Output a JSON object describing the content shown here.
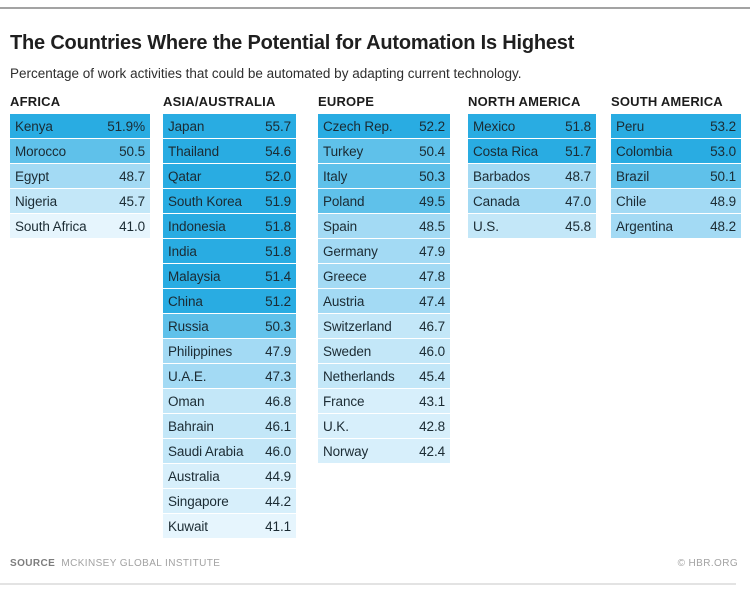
{
  "header": {
    "title": "The Countries Where the Potential for Automation Is Highest",
    "subtitle": "Percentage of work activities that could be automated by adapting current technology."
  },
  "footer": {
    "source_label": "SOURCE",
    "source_value": "MCKINSEY GLOBAL INSTITUTE",
    "copyright": "© HBR.ORG"
  },
  "chart_data": {
    "type": "heatmap",
    "title": "The Countries Where the Potential for Automation Is Highest",
    "subtitle": "Percentage of work activities that could be automated by adapting current technology.",
    "value_unit": "percent of work activities automatable",
    "value_range": [
      41.0,
      55.7
    ],
    "color_scale": {
      "bins": [
        {
          "min": 51.0,
          "color": "#29ACE2"
        },
        {
          "min": 49.5,
          "color": "#5FC1EA"
        },
        {
          "min": 47.0,
          "color": "#A3DAF4"
        },
        {
          "min": 45.4,
          "color": "#C3E7F8"
        },
        {
          "min": 42.4,
          "color": "#D7EFFB"
        },
        {
          "min": 0,
          "color": "#E6F5FD"
        }
      ]
    },
    "groups": [
      {
        "region": "AFRICA",
        "rows": [
          {
            "country": "Kenya",
            "value": 51.9,
            "display": "51.9%"
          },
          {
            "country": "Morocco",
            "value": 50.5,
            "display": "50.5"
          },
          {
            "country": "Egypt",
            "value": 48.7,
            "display": "48.7"
          },
          {
            "country": "Nigeria",
            "value": 45.7,
            "display": "45.7"
          },
          {
            "country": "South Africa",
            "value": 41.0,
            "display": "41.0"
          }
        ]
      },
      {
        "region": "ASIA/AUSTRALIA",
        "rows": [
          {
            "country": "Japan",
            "value": 55.7,
            "display": "55.7"
          },
          {
            "country": "Thailand",
            "value": 54.6,
            "display": "54.6"
          },
          {
            "country": "Qatar",
            "value": 52.0,
            "display": "52.0"
          },
          {
            "country": "South Korea",
            "value": 51.9,
            "display": "51.9"
          },
          {
            "country": "Indonesia",
            "value": 51.8,
            "display": "51.8"
          },
          {
            "country": "India",
            "value": 51.8,
            "display": "51.8"
          },
          {
            "country": "Malaysia",
            "value": 51.4,
            "display": "51.4"
          },
          {
            "country": "China",
            "value": 51.2,
            "display": "51.2"
          },
          {
            "country": "Russia",
            "value": 50.3,
            "display": "50.3"
          },
          {
            "country": "Philippines",
            "value": 47.9,
            "display": "47.9"
          },
          {
            "country": "U.A.E.",
            "value": 47.3,
            "display": "47.3"
          },
          {
            "country": "Oman",
            "value": 46.8,
            "display": "46.8"
          },
          {
            "country": "Bahrain",
            "value": 46.1,
            "display": "46.1"
          },
          {
            "country": "Saudi Arabia",
            "value": 46.0,
            "display": "46.0"
          },
          {
            "country": "Australia",
            "value": 44.9,
            "display": "44.9"
          },
          {
            "country": "Singapore",
            "value": 44.2,
            "display": "44.2"
          },
          {
            "country": "Kuwait",
            "value": 41.1,
            "display": "41.1"
          }
        ]
      },
      {
        "region": "EUROPE",
        "rows": [
          {
            "country": "Czech Rep.",
            "value": 52.2,
            "display": "52.2"
          },
          {
            "country": "Turkey",
            "value": 50.4,
            "display": "50.4"
          },
          {
            "country": "Italy",
            "value": 50.3,
            "display": "50.3"
          },
          {
            "country": "Poland",
            "value": 49.5,
            "display": "49.5"
          },
          {
            "country": "Spain",
            "value": 48.5,
            "display": "48.5"
          },
          {
            "country": "Germany",
            "value": 47.9,
            "display": "47.9"
          },
          {
            "country": "Greece",
            "value": 47.8,
            "display": "47.8"
          },
          {
            "country": "Austria",
            "value": 47.4,
            "display": "47.4"
          },
          {
            "country": "Switzerland",
            "value": 46.7,
            "display": "46.7"
          },
          {
            "country": "Sweden",
            "value": 46.0,
            "display": "46.0"
          },
          {
            "country": "Netherlands",
            "value": 45.4,
            "display": "45.4"
          },
          {
            "country": "France",
            "value": 43.1,
            "display": "43.1"
          },
          {
            "country": "U.K.",
            "value": 42.8,
            "display": "42.8"
          },
          {
            "country": "Norway",
            "value": 42.4,
            "display": "42.4"
          }
        ]
      },
      {
        "region": "NORTH AMERICA",
        "rows": [
          {
            "country": "Mexico",
            "value": 51.8,
            "display": "51.8"
          },
          {
            "country": "Costa Rica",
            "value": 51.7,
            "display": "51.7"
          },
          {
            "country": "Barbados",
            "value": 48.7,
            "display": "48.7"
          },
          {
            "country": "Canada",
            "value": 47.0,
            "display": "47.0"
          },
          {
            "country": "U.S.",
            "value": 45.8,
            "display": "45.8"
          }
        ]
      },
      {
        "region": "SOUTH AMERICA",
        "rows": [
          {
            "country": "Peru",
            "value": 53.2,
            "display": "53.2"
          },
          {
            "country": "Colombia",
            "value": 53.0,
            "display": "53.0"
          },
          {
            "country": "Brazil",
            "value": 50.1,
            "display": "50.1"
          },
          {
            "country": "Chile",
            "value": 48.9,
            "display": "48.9"
          },
          {
            "country": "Argentina",
            "value": 48.2,
            "display": "48.2"
          }
        ]
      }
    ]
  }
}
